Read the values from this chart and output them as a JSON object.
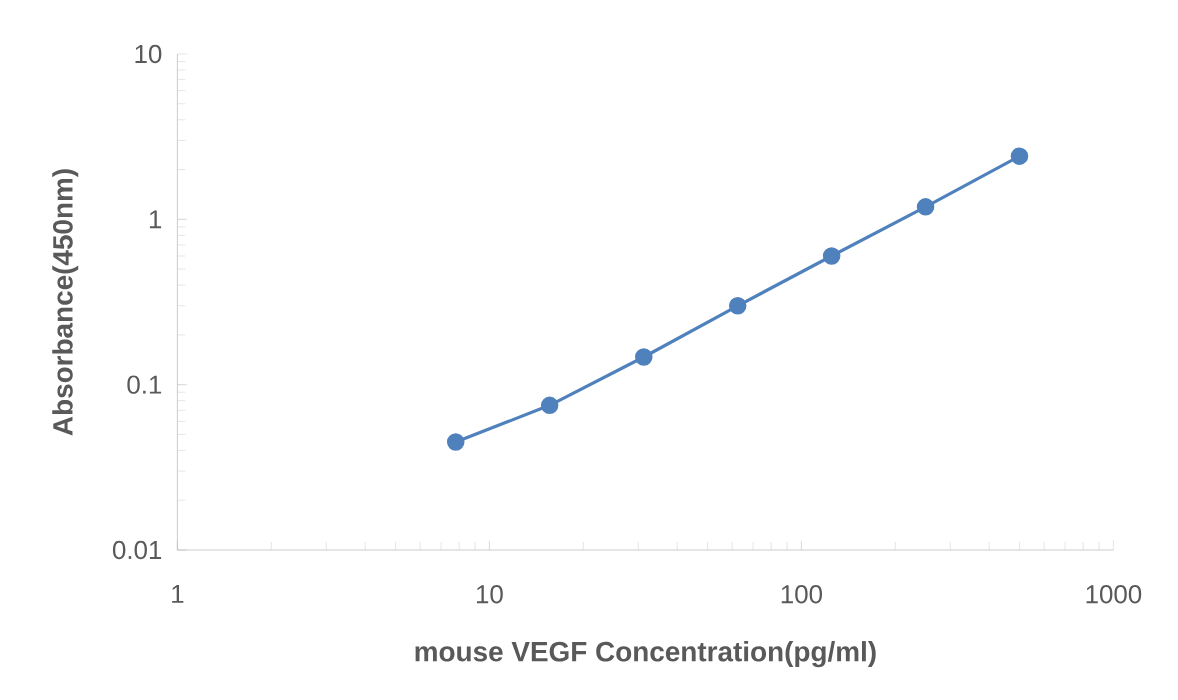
{
  "chart_data": {
    "type": "line",
    "xlabel": "mouse VEGF Concentration(pg/ml)",
    "ylabel": "Absorbance(450nm)",
    "x": [
      7.8,
      15.6,
      31.25,
      62.5,
      125,
      250,
      500
    ],
    "series": [
      {
        "color": "#4f81bd",
        "values": [
          0.045,
          0.075,
          0.147,
          0.3,
          0.6,
          1.19,
          2.41
        ]
      }
    ],
    "log": "xy",
    "xlim": [
      1,
      1000
    ],
    "ylim": [
      0.01,
      10
    ],
    "xticks": [
      1,
      10,
      100,
      1000
    ],
    "yticks": [
      0.01,
      0.1,
      1,
      10
    ],
    "marker": "circle",
    "line_style": "solid"
  }
}
